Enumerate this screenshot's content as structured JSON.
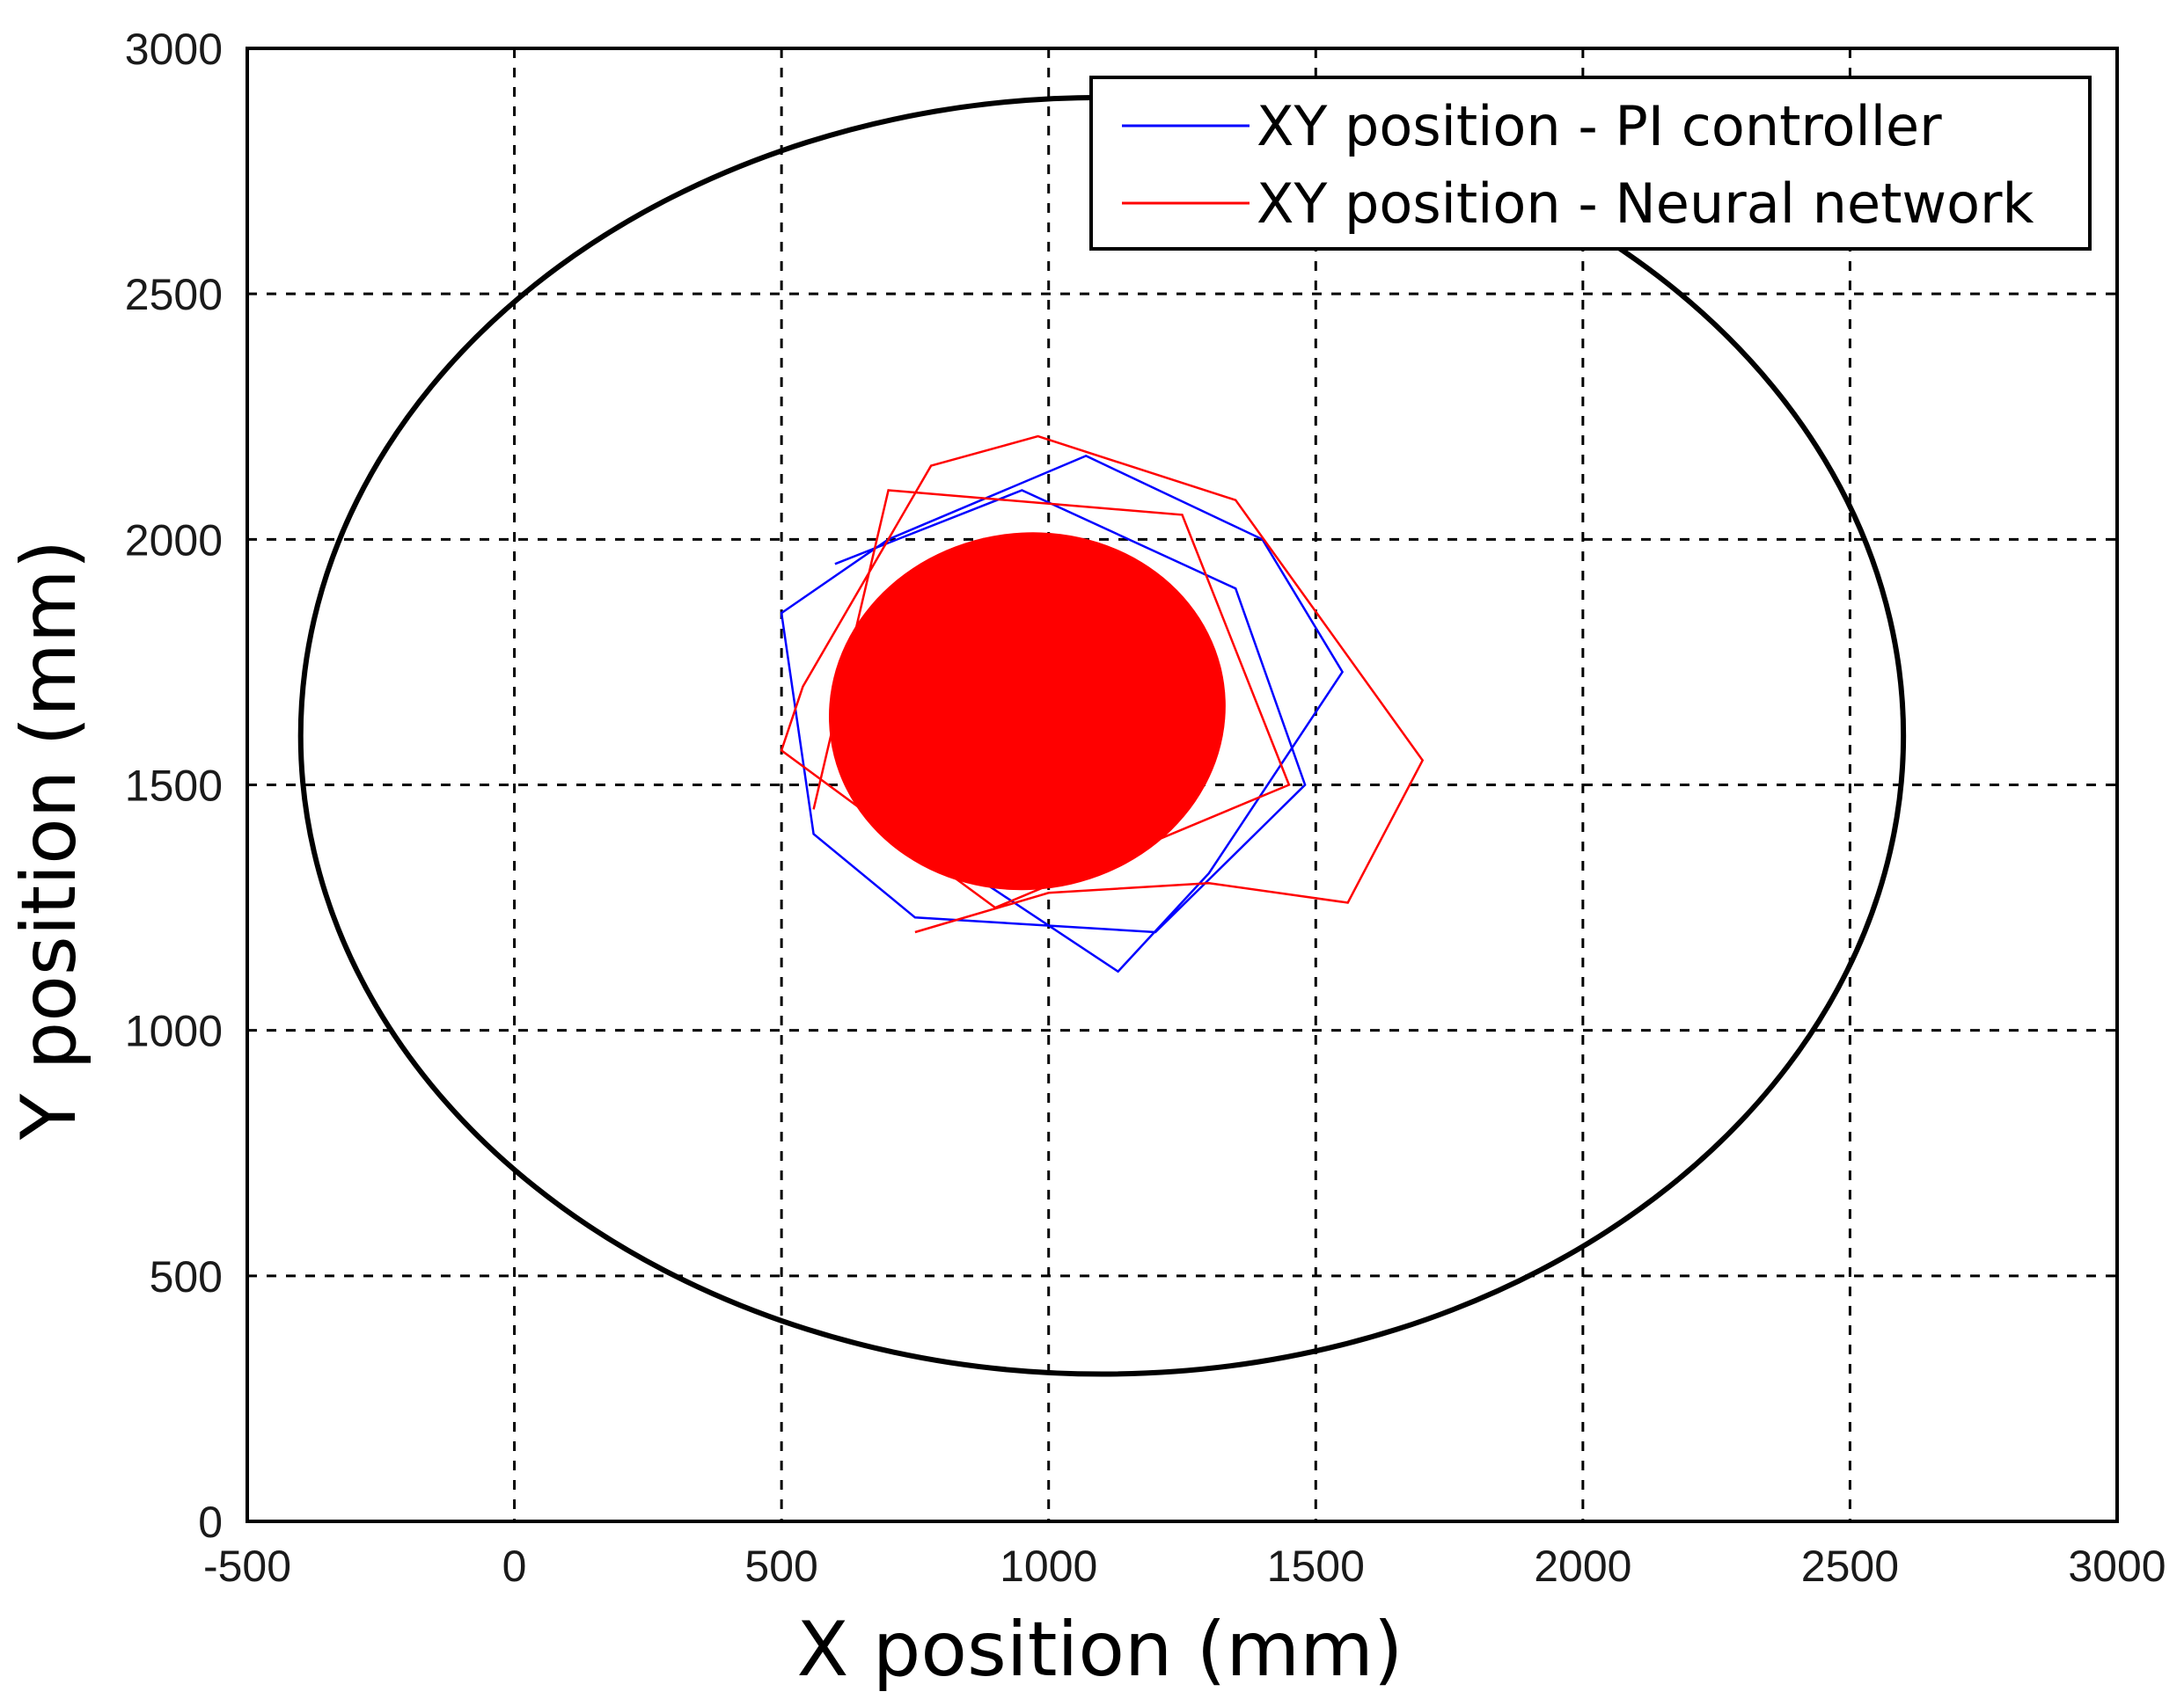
{
  "chart_data": {
    "type": "line",
    "xlabel": "X position (mm)",
    "ylabel": "Y position (mm)",
    "xlim": [
      -500,
      3000
    ],
    "ylim": [
      0,
      3000
    ],
    "xticks": [
      -500,
      0,
      500,
      1000,
      1500,
      2000,
      2500,
      3000
    ],
    "yticks": [
      0,
      500,
      1000,
      1500,
      2000,
      2500,
      3000
    ],
    "grid": true,
    "legend_position": "top-right",
    "boundary": {
      "shape": "ellipse",
      "center": [
        1100,
        1600
      ],
      "x_radius": 1500,
      "y_radius": 1300,
      "color": "#000000"
    },
    "series": [
      {
        "name": "XY position - PI controller",
        "color": "#0000ff",
        "x_range": [
          500,
          1550
        ],
        "y_range": [
          1120,
          2170
        ],
        "center": [
          960,
          1650
        ],
        "points": [
          [
            880,
            1300
          ],
          [
            1130,
            1120
          ],
          [
            1300,
            1320
          ],
          [
            1550,
            1730
          ],
          [
            1400,
            2000
          ],
          [
            1070,
            2170
          ],
          [
            700,
            2000
          ],
          [
            500,
            1850
          ],
          [
            560,
            1400
          ],
          [
            750,
            1230
          ],
          [
            1200,
            1200
          ],
          [
            1480,
            1500
          ],
          [
            1350,
            1900
          ],
          [
            950,
            2100
          ],
          [
            600,
            1950
          ]
        ]
      },
      {
        "name": "XY position - Neural network",
        "color": "#ff0000",
        "x_range": [
          500,
          1700
        ],
        "y_range": [
          1200,
          2210
        ],
        "center": [
          960,
          1650
        ],
        "points": [
          [
            750,
            1200
          ],
          [
            1000,
            1280
          ],
          [
            1300,
            1300
          ],
          [
            1560,
            1260
          ],
          [
            1700,
            1550
          ],
          [
            1350,
            2080
          ],
          [
            980,
            2210
          ],
          [
            780,
            2150
          ],
          [
            540,
            1700
          ],
          [
            500,
            1570
          ],
          [
            900,
            1250
          ],
          [
            1450,
            1500
          ],
          [
            1250,
            2050
          ],
          [
            700,
            2100
          ],
          [
            560,
            1450
          ]
        ]
      }
    ]
  }
}
